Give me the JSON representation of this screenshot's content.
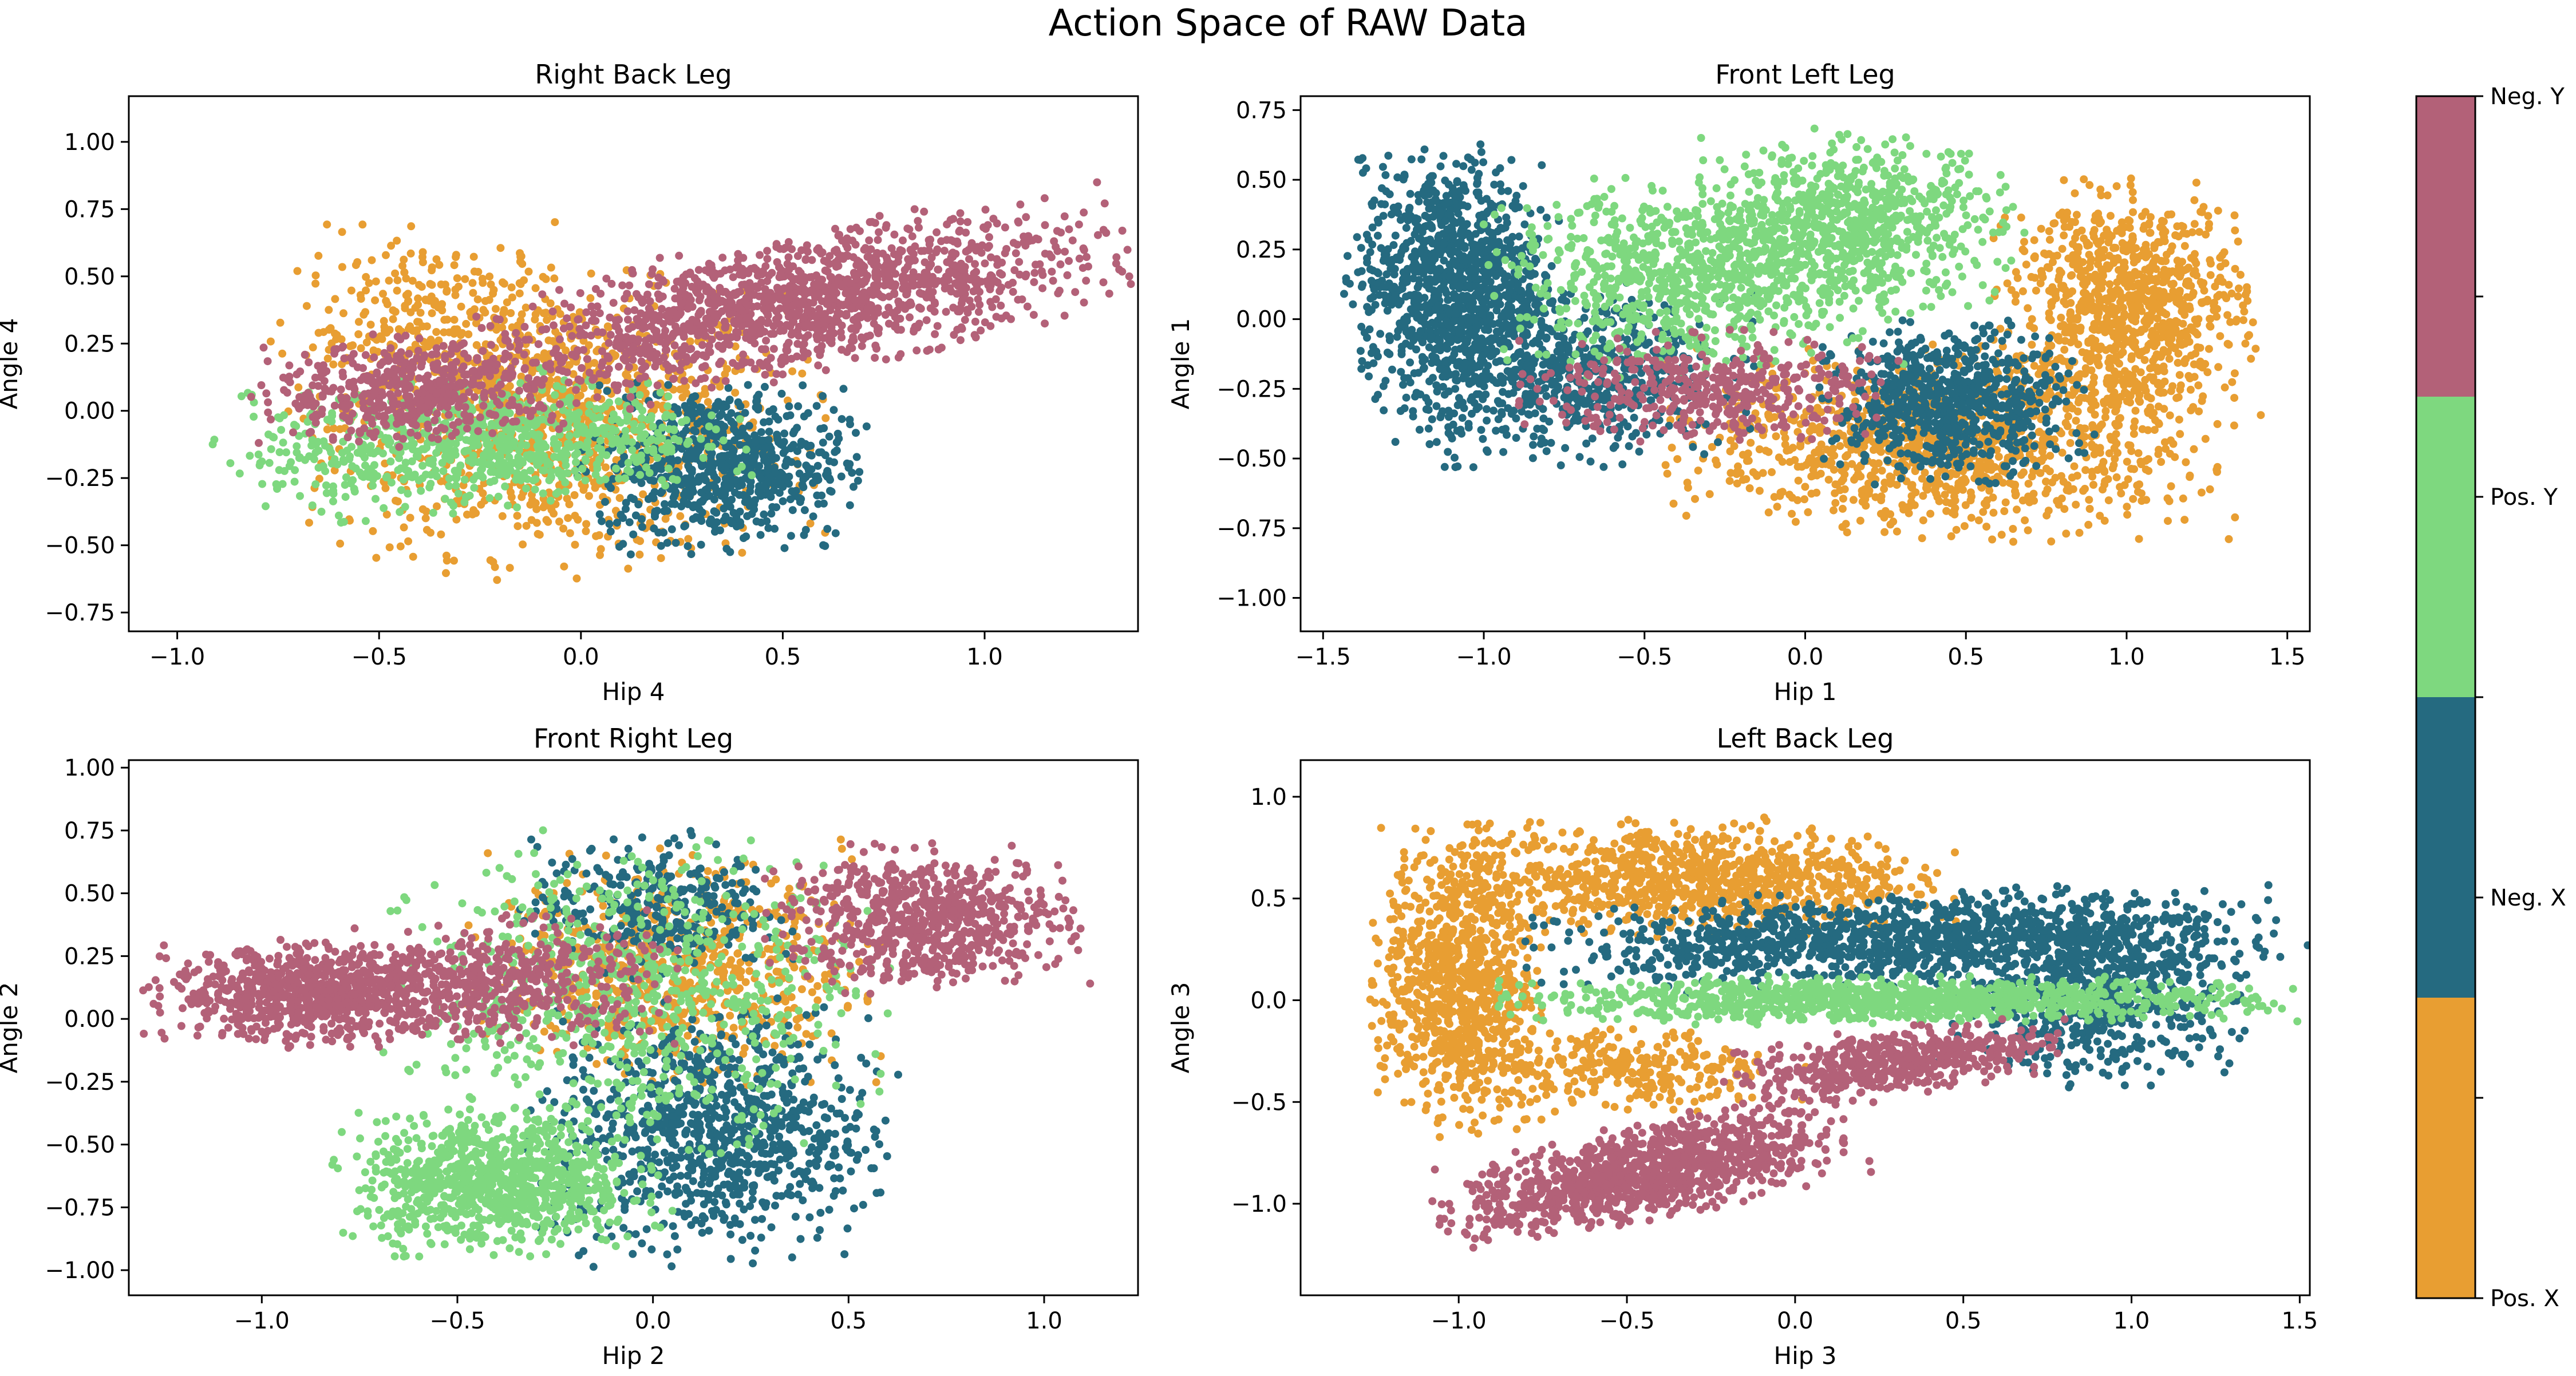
{
  "figure": {
    "title": "Action Space of RAW Data"
  },
  "colorbar": {
    "labels": [
      "Pos. X",
      "Neg. X",
      "Pos. Y",
      "Neg. Y"
    ],
    "colors": [
      "#E89E32",
      "#256A80",
      "#7ED87F",
      "#B36178"
    ]
  },
  "chart_data": [
    {
      "type": "scatter",
      "title": "Right Back Leg",
      "xlabel": "Hip 4",
      "ylabel": "Angle 4",
      "xlim": [
        -1.12,
        1.38
      ],
      "ylim": [
        -0.82,
        1.17
      ],
      "xticks": [
        -1.0,
        -0.5,
        0.0,
        0.5,
        1.0
      ],
      "xtick_labels": [
        "−1.0",
        "−0.5",
        "0.0",
        "0.5",
        "1.0"
      ],
      "yticks": [
        -0.75,
        -0.5,
        -0.25,
        0.0,
        0.25,
        0.5,
        0.75,
        1.0
      ],
      "ytick_labels": [
        "−0.75",
        "−0.50",
        "−0.25",
        "0.00",
        "0.25",
        "0.50",
        "0.75",
        "1.00"
      ],
      "series": [
        {
          "name": "Pos. X",
          "color": "#E89E32",
          "clusters": [
            {
              "cx": -0.05,
              "cy": -0.05,
              "rx": 0.55,
              "ry": 0.48,
              "rot": 0,
              "n": 1000
            },
            {
              "cx": -0.35,
              "cy": 0.3,
              "rx": 0.35,
              "ry": 0.35,
              "rot": 0,
              "n": 300
            }
          ]
        },
        {
          "name": "Neg. X",
          "color": "#256A80",
          "clusters": [
            {
              "cx": 0.35,
              "cy": -0.2,
              "rx": 0.3,
              "ry": 0.28,
              "rot": 0,
              "n": 700
            }
          ]
        },
        {
          "name": "Pos. Y",
          "color": "#7ED87F",
          "clusters": [
            {
              "cx": -0.25,
              "cy": -0.12,
              "rx": 0.55,
              "ry": 0.22,
              "rot": 0.1,
              "n": 800
            }
          ]
        },
        {
          "name": "Neg. Y",
          "color": "#B36178",
          "clusters": [
            {
              "cx": 0.55,
              "cy": 0.4,
              "rx": 0.7,
              "ry": 0.22,
              "rot": 0.28,
              "n": 1400
            },
            {
              "cx": -0.4,
              "cy": 0.08,
              "rx": 0.35,
              "ry": 0.18,
              "rot": 0.1,
              "n": 500
            }
          ]
        }
      ]
    },
    {
      "type": "scatter",
      "title": "Front Left Leg",
      "xlabel": "Hip 1",
      "ylabel": "Angle 1",
      "xlim": [
        -1.57,
        1.57
      ],
      "ylim": [
        -1.12,
        0.8
      ],
      "xticks": [
        -1.5,
        -1.0,
        -0.5,
        0.0,
        0.5,
        1.0,
        1.5
      ],
      "xtick_labels": [
        "−1.5",
        "−1.0",
        "−0.5",
        "0.0",
        "0.5",
        "1.0",
        "1.5"
      ],
      "yticks": [
        -1.0,
        -0.75,
        -0.5,
        -0.25,
        0.0,
        0.25,
        0.5,
        0.75
      ],
      "ytick_labels": [
        "−1.00",
        "−0.75",
        "−0.50",
        "−0.25",
        "0.00",
        "0.25",
        "0.50",
        "0.75"
      ],
      "series": [
        {
          "name": "Pos. X",
          "color": "#E89E32",
          "clusters": [
            {
              "cx": 1.0,
              "cy": 0.05,
              "rx": 0.35,
              "ry": 0.38,
              "rot": 0,
              "n": 900
            },
            {
              "cx": 0.45,
              "cy": -0.45,
              "rx": 0.75,
              "ry": 0.3,
              "rot": 0,
              "n": 1100
            }
          ]
        },
        {
          "name": "Neg. X",
          "color": "#256A80",
          "clusters": [
            {
              "cx": -1.1,
              "cy": 0.15,
              "rx": 0.28,
              "ry": 0.4,
              "rot": 0,
              "n": 1000
            },
            {
              "cx": -0.75,
              "cy": -0.2,
              "rx": 0.5,
              "ry": 0.28,
              "rot": 0,
              "n": 700
            },
            {
              "cx": 0.45,
              "cy": -0.3,
              "rx": 0.35,
              "ry": 0.25,
              "rot": 0,
              "n": 700
            }
          ]
        },
        {
          "name": "Pos. Y",
          "color": "#7ED87F",
          "clusters": [
            {
              "cx": 0.15,
              "cy": 0.35,
              "rx": 0.45,
              "ry": 0.28,
              "rot": 0,
              "n": 700
            },
            {
              "cx": -0.35,
              "cy": 0.15,
              "rx": 0.55,
              "ry": 0.3,
              "rot": 0,
              "n": 800
            }
          ]
        },
        {
          "name": "Neg. Y",
          "color": "#B36178",
          "clusters": [
            {
              "cx": -0.3,
              "cy": -0.25,
              "rx": 0.5,
              "ry": 0.18,
              "rot": 0,
              "n": 400
            }
          ]
        }
      ]
    },
    {
      "type": "scatter",
      "title": "Front Right Leg",
      "xlabel": "Hip 2",
      "ylabel": "Angle 2",
      "xlim": [
        -1.34,
        1.24
      ],
      "ylim": [
        -1.1,
        1.03
      ],
      "xticks": [
        -1.0,
        -0.5,
        0.0,
        0.5,
        1.0
      ],
      "xtick_labels": [
        "−1.0",
        "−0.5",
        "0.0",
        "0.5",
        "1.0"
      ],
      "yticks": [
        -1.0,
        -0.75,
        -0.5,
        -0.25,
        0.0,
        0.25,
        0.5,
        0.75,
        1.0
      ],
      "ytick_labels": [
        "−1.00",
        "−0.75",
        "−0.50",
        "−0.25",
        "0.00",
        "0.25",
        "0.50",
        "0.75",
        "1.00"
      ],
      "series": [
        {
          "name": "Pos. X",
          "color": "#E89E32",
          "clusters": [
            {
              "cx": 0.05,
              "cy": 0.2,
              "rx": 0.45,
              "ry": 0.4,
              "rot": 0,
              "n": 700
            }
          ]
        },
        {
          "name": "Neg. X",
          "color": "#256A80",
          "clusters": [
            {
              "cx": 0.15,
              "cy": -0.45,
              "rx": 0.4,
              "ry": 0.45,
              "rot": 0,
              "n": 900
            },
            {
              "cx": 0.0,
              "cy": 0.45,
              "rx": 0.3,
              "ry": 0.25,
              "rot": 0,
              "n": 300
            }
          ]
        },
        {
          "name": "Pos. Y",
          "color": "#7ED87F",
          "clusters": [
            {
              "cx": -0.4,
              "cy": -0.65,
              "rx": 0.35,
              "ry": 0.25,
              "rot": 0,
              "n": 900
            },
            {
              "cx": -0.05,
              "cy": 0.1,
              "rx": 0.55,
              "ry": 0.55,
              "rot": 0,
              "n": 700
            }
          ]
        },
        {
          "name": "Neg. Y",
          "color": "#B36178",
          "clusters": [
            {
              "cx": -0.85,
              "cy": 0.1,
              "rx": 0.38,
              "ry": 0.18,
              "rot": 0,
              "n": 900
            },
            {
              "cx": 0.7,
              "cy": 0.4,
              "rx": 0.35,
              "ry": 0.25,
              "rot": 0,
              "n": 700
            },
            {
              "cx": -0.35,
              "cy": 0.15,
              "rx": 0.35,
              "ry": 0.22,
              "rot": 0,
              "n": 400
            }
          ]
        }
      ]
    },
    {
      "type": "scatter",
      "title": "Left Back Leg",
      "xlabel": "Hip 3",
      "ylabel": "Angle 3",
      "xlim": [
        -1.47,
        1.53
      ],
      "ylim": [
        -1.45,
        1.18
      ],
      "xticks": [
        -1.0,
        -0.5,
        0.0,
        0.5,
        1.0,
        1.5
      ],
      "xtick_labels": [
        "−1.0",
        "−0.5",
        "0.0",
        "0.5",
        "1.0",
        "1.5"
      ],
      "yticks": [
        -1.0,
        -0.5,
        0.0,
        0.5,
        1.0
      ],
      "ytick_labels": [
        "−1.0",
        "−0.5",
        "0.0",
        "0.5",
        "1.0"
      ],
      "series": [
        {
          "name": "Pos. X",
          "color": "#E89E32",
          "clusters": [
            {
              "cx": -1.0,
              "cy": 0.1,
              "rx": 0.22,
              "ry": 0.65,
              "rot": 0,
              "n": 900
            },
            {
              "cx": -0.3,
              "cy": 0.6,
              "rx": 0.65,
              "ry": 0.25,
              "rot": 0,
              "n": 900
            },
            {
              "cx": -0.5,
              "cy": -0.35,
              "rx": 0.45,
              "ry": 0.2,
              "rot": 0,
              "n": 300
            }
          ]
        },
        {
          "name": "Neg. X",
          "color": "#256A80",
          "clusters": [
            {
              "cx": 0.3,
              "cy": 0.3,
              "rx": 0.95,
              "ry": 0.2,
              "rot": 0.05,
              "n": 1100
            },
            {
              "cx": 0.9,
              "cy": 0.05,
              "rx": 0.4,
              "ry": 0.4,
              "rot": 0,
              "n": 700
            }
          ]
        },
        {
          "name": "Pos. Y",
          "color": "#7ED87F",
          "clusters": [
            {
              "cx": 0.3,
              "cy": 0.0,
              "rx": 1.0,
              "ry": 0.1,
              "rot": 0,
              "n": 1100
            }
          ]
        },
        {
          "name": "Neg. Y",
          "color": "#B36178",
          "clusters": [
            {
              "cx": -0.45,
              "cy": -0.85,
              "rx": 0.55,
              "ry": 0.2,
              "rot": 0.35,
              "n": 1100
            },
            {
              "cx": 0.3,
              "cy": -0.3,
              "rx": 0.45,
              "ry": 0.15,
              "rot": 0.25,
              "n": 500
            }
          ]
        }
      ]
    }
  ]
}
